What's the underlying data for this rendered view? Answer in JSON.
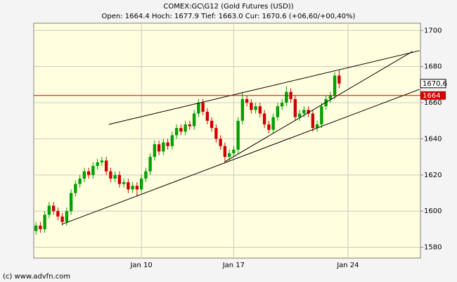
{
  "chart_data": {
    "type": "candlestick",
    "title": "COMEX:GC\\G12 (Gold Futures (USD))",
    "subtitle": "Open: 1664.4 Hoch: 1677.9 Tief: 1663.0 Cur: 1670.6 (+06,60/+00,40%)",
    "footer": "(c) www.advfn.com",
    "categories": [
      null,
      null,
      null,
      null,
      null,
      null,
      null,
      null,
      null,
      null,
      null,
      null,
      null,
      null,
      null,
      null,
      null,
      null,
      null,
      null,
      null,
      null,
      null,
      null,
      "Jan 10",
      null,
      null,
      null,
      null,
      null,
      null,
      null,
      null,
      null,
      null,
      null,
      null,
      null,
      null,
      null,
      null,
      null,
      null,
      null,
      null,
      "Jan 17",
      null,
      null,
      null,
      null,
      null,
      null,
      null,
      null,
      null,
      null,
      null,
      null,
      null,
      null,
      null,
      null,
      null,
      null,
      null,
      null,
      null,
      null,
      null,
      null,
      null,
      "Jan 24",
      null,
      null,
      null,
      null,
      null,
      null,
      null,
      null,
      null,
      null,
      null,
      null,
      null,
      null,
      null,
      null
    ],
    "open": [
      1589,
      1592,
      1590,
      1598,
      1603,
      1600,
      1597,
      1594,
      1600,
      1610,
      1615,
      1618,
      1622,
      1620,
      1625,
      1627,
      1628,
      1622,
      1618,
      1620,
      1615,
      1616,
      1612,
      1614,
      1612,
      1618,
      1622,
      1630,
      1637,
      1633,
      1638,
      1636,
      1642,
      1646,
      1644,
      1648,
      1647,
      1654,
      1660,
      1655,
      1650,
      1646,
      1640,
      1636,
      1630,
      1632,
      1634,
      1650,
      1662,
      1660,
      1656,
      1658,
      1654,
      1648,
      1645,
      1652,
      1658,
      1660,
      1666,
      1662,
      1652,
      1654,
      1656,
      1654,
      1646,
      1648,
      1658,
      1662,
      1664,
      1675,
      null,
      null,
      null,
      null,
      null,
      null,
      null,
      null,
      null,
      null,
      null,
      null,
      null,
      null,
      null,
      null,
      null,
      null
    ],
    "high": [
      1594,
      1594,
      1600,
      1605,
      1605,
      1602,
      1599,
      1602,
      1612,
      1617,
      1620,
      1624,
      1624,
      1627,
      1629,
      1630,
      1630,
      1624,
      1622,
      1622,
      1618,
      1618,
      1616,
      1616,
      1620,
      1624,
      1632,
      1639,
      1639,
      1640,
      1640,
      1644,
      1648,
      1648,
      1650,
      1650,
      1656,
      1662,
      1662,
      1657,
      1652,
      1648,
      1642,
      1638,
      1634,
      1636,
      1652,
      1666,
      1664,
      1662,
      1660,
      1660,
      1656,
      1650,
      1654,
      1660,
      1662,
      1669,
      1668,
      1664,
      1656,
      1658,
      1658,
      1656,
      1650,
      1660,
      1664,
      1666,
      1677,
      1677.9,
      null,
      null,
      null,
      null,
      null,
      null,
      null,
      null,
      null,
      null,
      null,
      null,
      null,
      null,
      null,
      null,
      null,
      null
    ],
    "low": [
      1587,
      1588,
      1588,
      1596,
      1598,
      1595,
      1592,
      1592,
      1598,
      1608,
      1613,
      1616,
      1618,
      1618,
      1623,
      1625,
      1620,
      1616,
      1616,
      1613,
      1613,
      1610,
      1610,
      1608,
      1610,
      1616,
      1620,
      1628,
      1631,
      1631,
      1634,
      1634,
      1640,
      1642,
      1642,
      1645,
      1645,
      1652,
      1653,
      1648,
      1644,
      1638,
      1634,
      1627,
      1628,
      1630,
      1632,
      1648,
      1658,
      1654,
      1654,
      1652,
      1646,
      1643,
      1643,
      1650,
      1656,
      1658,
      1660,
      1650,
      1650,
      1652,
      1652,
      1644,
      1644,
      1646,
      1656,
      1660,
      1662,
      1668,
      null,
      null,
      null,
      null,
      null,
      null,
      null,
      null,
      null,
      null,
      null,
      null,
      null,
      null,
      null,
      null,
      null,
      null
    ],
    "close": [
      1592,
      1590,
      1598,
      1603,
      1600,
      1597,
      1594,
      1600,
      1610,
      1615,
      1618,
      1622,
      1620,
      1625,
      1627,
      1628,
      1622,
      1618,
      1620,
      1615,
      1616,
      1612,
      1614,
      1612,
      1618,
      1622,
      1630,
      1637,
      1633,
      1638,
      1636,
      1642,
      1646,
      1644,
      1648,
      1647,
      1654,
      1660,
      1655,
      1650,
      1646,
      1640,
      1636,
      1630,
      1632,
      1634,
      1650,
      1662,
      1660,
      1656,
      1658,
      1654,
      1648,
      1645,
      1652,
      1658,
      1660,
      1666,
      1662,
      1652,
      1654,
      1656,
      1654,
      1646,
      1648,
      1658,
      1662,
      1664,
      1675,
      1670.6,
      null,
      null,
      null,
      null,
      null,
      null,
      null,
      null,
      null,
      null,
      null,
      null,
      null,
      null,
      null,
      null,
      null,
      null
    ],
    "up_color": "#00a000",
    "down_color": "#d00000",
    "ylim": [
      1574,
      1704
    ],
    "yticks": [
      1580,
      1600,
      1620,
      1640,
      1660,
      1680,
      1700
    ],
    "grid": true,
    "reference_line": {
      "value": 1664,
      "label": "1664",
      "color": "#d00000"
    },
    "last_price": {
      "value": 1670.6,
      "label": "1670,6"
    },
    "trendlines": [
      {
        "x": [
          16.6,
          87.3
        ],
        "y": [
          1648.0,
          1688.8
        ]
      },
      {
        "x": [
          5.9,
          87.3
        ],
        "y": [
          1592.7,
          1667.4
        ]
      },
      {
        "x": [
          43,
          85.7
        ],
        "y": [
          1627.3,
          1688.4
        ]
      }
    ]
  }
}
